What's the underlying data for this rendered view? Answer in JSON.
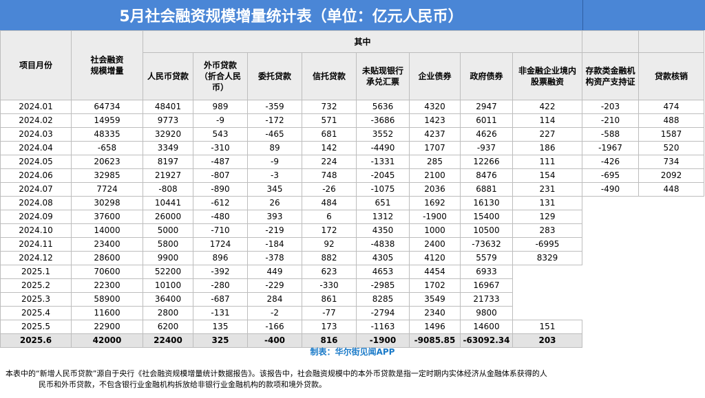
{
  "title": "5月社会融资规模增量统计表（单位：亿元人民币）",
  "headers": {
    "month": "项目月份",
    "total_line1": "社会融资",
    "total_line2": "规模增量",
    "group": "其中",
    "rmb_loan": "人民币贷款",
    "fx_loan_line1": "外币贷款",
    "fx_loan_line2": "（折合人民",
    "fx_loan_line3": "币）",
    "entrusted": "委托贷款",
    "trust": "信托贷款",
    "bankers_acceptance_line1": "未贴现银行",
    "bankers_acceptance_line2": "承兑汇票",
    "corp_bond": "企业债券",
    "gov_bond": "政府债券",
    "equity_line1": "非金融企业境内",
    "equity_line2": "股票融资",
    "abs_line1": "存款类金融机",
    "abs_line2": "构资产支持证",
    "writeoff": "贷款核销"
  },
  "rows": [
    {
      "month": "2024.01",
      "total": "64734",
      "rmb": "48401",
      "fx": "989",
      "entrusted": "-359",
      "trust": "732",
      "ba": "5636",
      "corp": "4320",
      "gov": "2947",
      "equity": "422",
      "abs": "-203",
      "writeoff": "474"
    },
    {
      "month": "2024.02",
      "total": "14959",
      "rmb": "9773",
      "fx": "-9",
      "entrusted": "-172",
      "trust": "571",
      "ba": "-3686",
      "corp": "1423",
      "gov": "6011",
      "equity": "114",
      "abs": "-210",
      "writeoff": "488"
    },
    {
      "month": "2024.03",
      "total": "48335",
      "rmb": "32920",
      "fx": "543",
      "entrusted": "-465",
      "trust": "681",
      "ba": "3552",
      "corp": "4237",
      "gov": "4626",
      "equity": "227",
      "abs": "-588",
      "writeoff": "1587"
    },
    {
      "month": "2024.04",
      "total": "-658",
      "rmb": "3349",
      "fx": "-310",
      "entrusted": "89",
      "trust": "142",
      "ba": "-4490",
      "corp": "1707",
      "gov": "-937",
      "equity": "186",
      "abs": "-1967",
      "writeoff": "520"
    },
    {
      "month": "2024.05",
      "total": "20623",
      "rmb": "8197",
      "fx": "-487",
      "entrusted": "-9",
      "trust": "224",
      "ba": "-1331",
      "corp": "285",
      "gov": "12266",
      "equity": "111",
      "abs": "-426",
      "writeoff": "734"
    },
    {
      "month": "2024.06",
      "total": "32985",
      "rmb": "21927",
      "fx": "-807",
      "entrusted": "-3",
      "trust": "748",
      "ba": "-2045",
      "corp": "2100",
      "gov": "8476",
      "equity": "154",
      "abs": "-695",
      "writeoff": "2092"
    },
    {
      "month": "2024.07",
      "total": "7724",
      "rmb": "-808",
      "fx": "-890",
      "entrusted": "345",
      "trust": "-26",
      "ba": "-1075",
      "corp": "2036",
      "gov": "6881",
      "equity": "231",
      "abs": "-490",
      "writeoff": "448"
    },
    {
      "month": "2024.08",
      "total": "30298",
      "rmb": "10441",
      "fx": "-612",
      "entrusted": "26",
      "trust": "484",
      "ba": "651",
      "corp": "1692",
      "gov": "16130",
      "equity": "131",
      "abs": "",
      "writeoff": ""
    },
    {
      "month": "2024.09",
      "total": "37600",
      "rmb": "26000",
      "fx": "-480",
      "entrusted": "393",
      "trust": "6",
      "ba": "1312",
      "corp": "-1900",
      "gov": "15400",
      "equity": "129",
      "abs": "",
      "writeoff": ""
    },
    {
      "month": "2024.10",
      "total": "14000",
      "rmb": "5000",
      "fx": "-710",
      "entrusted": "-219",
      "trust": "172",
      "ba": "4350",
      "corp": "1000",
      "gov": "10500",
      "equity": "283",
      "abs": "",
      "writeoff": ""
    },
    {
      "month": "2024.11",
      "total": "23400",
      "rmb": "5800",
      "fx": "1724",
      "entrusted": "-184",
      "trust": "92",
      "ba": "-4838",
      "corp": "2400",
      "gov": "-73632",
      "equity": "-6995",
      "abs": "",
      "writeoff": ""
    },
    {
      "month": "2024.12",
      "total": "28600",
      "rmb": "9900",
      "fx": "896",
      "entrusted": "-378",
      "trust": "882",
      "ba": "4305",
      "corp": "4120",
      "gov": "5579",
      "equity": "8329",
      "abs": "",
      "writeoff": ""
    },
    {
      "month": "2025.1",
      "total": "70600",
      "rmb": "52200",
      "fx": "-392",
      "entrusted": "449",
      "trust": "623",
      "ba": "4653",
      "corp": "4454",
      "gov": "6933",
      "equity": "",
      "abs": "",
      "writeoff": ""
    },
    {
      "month": "2025.2",
      "total": "22300",
      "rmb": "10100",
      "fx": "-280",
      "entrusted": "-229",
      "trust": "-330",
      "ba": "-2985",
      "corp": "1702",
      "gov": "16967",
      "equity": "",
      "abs": "",
      "writeoff": ""
    },
    {
      "month": "2025.3",
      "total": "58900",
      "rmb": "36400",
      "fx": "-687",
      "entrusted": "284",
      "trust": "861",
      "ba": "8285",
      "corp": "3549",
      "gov": "21733",
      "equity": "",
      "abs": "",
      "writeoff": ""
    },
    {
      "month": "2025.4",
      "total": "11600",
      "rmb": "2800",
      "fx": "-131",
      "entrusted": "-2",
      "trust": "-77",
      "ba": "-2794",
      "corp": "2340",
      "gov": "9800",
      "equity": "",
      "abs": "",
      "writeoff": ""
    },
    {
      "month": "2025.5",
      "total": "22900",
      "rmb": "6200",
      "fx": "135",
      "entrusted": "-166",
      "trust": "173",
      "ba": "-1163",
      "corp": "1496",
      "gov": "14600",
      "equity": "151",
      "abs": "",
      "writeoff": ""
    }
  ],
  "total_row": {
    "month": "2025.6",
    "total": "42000",
    "rmb": "22400",
    "fx": "325",
    "entrusted": "-400",
    "trust": "816",
    "ba": "-1900",
    "corp": "-9085.85",
    "gov": "-63092.34",
    "equity": "203"
  },
  "credit_prefix": "制表：",
  "credit_brand": "华尔街见闻APP",
  "footnote_line1": "本表中的“新增人民币贷款”源自于央行《社会融资规模增量统计数据报告》。该报告中，社会融资规模中的本外币贷款是指一定时期内实体经济从金融体系获得的人",
  "footnote_line2": "民币和外币贷款，不包含银行业金融机构拆放给非银行业金融机构的款项和境外贷款。"
}
